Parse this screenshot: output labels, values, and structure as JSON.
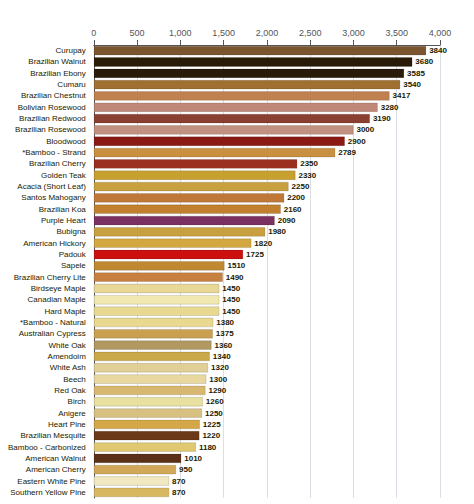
{
  "chart_data": {
    "type": "bar",
    "orientation": "horizontal",
    "categories": [
      "Curupay",
      "Brazilian Walnut",
      "Brazilian Ebony",
      "Cumaru",
      "Brazilian Chestnut",
      "Bolivian Rosewood",
      "Brazilian Redwood",
      "Brazilian Rosewood",
      "Bloodwood",
      "*Bamboo - Strand",
      "Brazilian Cherry",
      "Golden Teak",
      "Acacia (Short Leaf)",
      "Santos Mahogany",
      "Brazilian Koa",
      "Purple Heart",
      "Bubigna",
      "American Hickory",
      "Padouk",
      "Sapele",
      "Brazilian Cherry Lite",
      "Birdseye Maple",
      "Canadian Maple",
      "Hard Maple",
      "*Bamboo - Natural",
      "Australian Cypress",
      "White Oak",
      "Amendoim",
      "White Ash",
      "Beech",
      "Red Oak",
      "Birch",
      "Anigere",
      "Heart Pine",
      "Brazilian Mesquite",
      "Bamboo - Carbonized",
      "American Walnut",
      "American Cherry",
      "Eastern White Pine",
      "Southern Yellow Pine"
    ],
    "values": [
      3840,
      3680,
      3585,
      3540,
      3417,
      3280,
      3190,
      3000,
      2900,
      2789,
      2350,
      2330,
      2250,
      2200,
      2160,
      2090,
      1980,
      1820,
      1725,
      1510,
      1490,
      1450,
      1450,
      1450,
      1380,
      1375,
      1360,
      1340,
      1320,
      1300,
      1290,
      1260,
      1250,
      1225,
      1220,
      1180,
      1010,
      950,
      870,
      870
    ],
    "colors": [
      "#7a5530",
      "#2a1a08",
      "#2a1a0a",
      "#a07030",
      "#c08050",
      "#c08878",
      "#8a4030",
      "#c09080",
      "#8b1a15",
      "#c89040",
      "#9b3020",
      "#c8a030",
      "#c8a040",
      "#c07838",
      "#c08030",
      "#7a3060",
      "#c8a040",
      "#d4a840",
      "#cc1010",
      "#c08830",
      "#c88040",
      "#e8d898",
      "#f0e8b0",
      "#e8d890",
      "#e8d890",
      "#c8a050",
      "#b09860",
      "#c8a848",
      "#e0d098",
      "#e8d8a0",
      "#d8b870",
      "#e8e0a0",
      "#d8c080",
      "#d4a848",
      "#6b3818",
      "#e0c870",
      "#5a3018",
      "#d0a858",
      "#f0e8c0",
      "#d8b860"
    ],
    "xlim": [
      0,
      4000
    ],
    "xticks": [
      0,
      500,
      1000,
      1500,
      2000,
      2500,
      3000,
      3500,
      4000
    ],
    "grid": true,
    "data_labels": true
  }
}
